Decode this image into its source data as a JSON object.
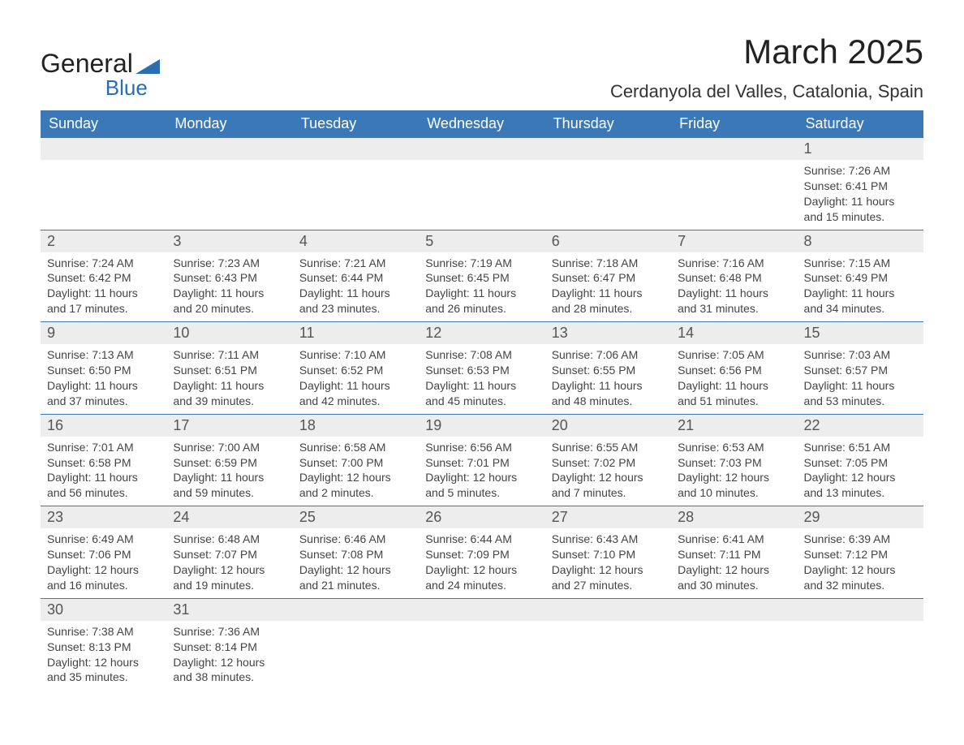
{
  "logo": {
    "general": "General",
    "blue": "Blue"
  },
  "title": "March 2025",
  "location": "Cerdanyola del Valles, Catalonia, Spain",
  "colors": {
    "header_bg": "#3b78b8",
    "header_text": "#ffffff",
    "daynum_bg": "#ededed",
    "border": "#3b78b8",
    "body_text": "#444444",
    "title_text": "#222222",
    "logo_accent": "#2a6db3"
  },
  "weekdays": [
    "Sunday",
    "Monday",
    "Tuesday",
    "Wednesday",
    "Thursday",
    "Friday",
    "Saturday"
  ],
  "weeks": [
    [
      null,
      null,
      null,
      null,
      null,
      null,
      {
        "n": "1",
        "sunrise": "Sunrise: 7:26 AM",
        "sunset": "Sunset: 6:41 PM",
        "dl1": "Daylight: 11 hours",
        "dl2": "and 15 minutes."
      }
    ],
    [
      {
        "n": "2",
        "sunrise": "Sunrise: 7:24 AM",
        "sunset": "Sunset: 6:42 PM",
        "dl1": "Daylight: 11 hours",
        "dl2": "and 17 minutes."
      },
      {
        "n": "3",
        "sunrise": "Sunrise: 7:23 AM",
        "sunset": "Sunset: 6:43 PM",
        "dl1": "Daylight: 11 hours",
        "dl2": "and 20 minutes."
      },
      {
        "n": "4",
        "sunrise": "Sunrise: 7:21 AM",
        "sunset": "Sunset: 6:44 PM",
        "dl1": "Daylight: 11 hours",
        "dl2": "and 23 minutes."
      },
      {
        "n": "5",
        "sunrise": "Sunrise: 7:19 AM",
        "sunset": "Sunset: 6:45 PM",
        "dl1": "Daylight: 11 hours",
        "dl2": "and 26 minutes."
      },
      {
        "n": "6",
        "sunrise": "Sunrise: 7:18 AM",
        "sunset": "Sunset: 6:47 PM",
        "dl1": "Daylight: 11 hours",
        "dl2": "and 28 minutes."
      },
      {
        "n": "7",
        "sunrise": "Sunrise: 7:16 AM",
        "sunset": "Sunset: 6:48 PM",
        "dl1": "Daylight: 11 hours",
        "dl2": "and 31 minutes."
      },
      {
        "n": "8",
        "sunrise": "Sunrise: 7:15 AM",
        "sunset": "Sunset: 6:49 PM",
        "dl1": "Daylight: 11 hours",
        "dl2": "and 34 minutes."
      }
    ],
    [
      {
        "n": "9",
        "sunrise": "Sunrise: 7:13 AM",
        "sunset": "Sunset: 6:50 PM",
        "dl1": "Daylight: 11 hours",
        "dl2": "and 37 minutes."
      },
      {
        "n": "10",
        "sunrise": "Sunrise: 7:11 AM",
        "sunset": "Sunset: 6:51 PM",
        "dl1": "Daylight: 11 hours",
        "dl2": "and 39 minutes."
      },
      {
        "n": "11",
        "sunrise": "Sunrise: 7:10 AM",
        "sunset": "Sunset: 6:52 PM",
        "dl1": "Daylight: 11 hours",
        "dl2": "and 42 minutes."
      },
      {
        "n": "12",
        "sunrise": "Sunrise: 7:08 AM",
        "sunset": "Sunset: 6:53 PM",
        "dl1": "Daylight: 11 hours",
        "dl2": "and 45 minutes."
      },
      {
        "n": "13",
        "sunrise": "Sunrise: 7:06 AM",
        "sunset": "Sunset: 6:55 PM",
        "dl1": "Daylight: 11 hours",
        "dl2": "and 48 minutes."
      },
      {
        "n": "14",
        "sunrise": "Sunrise: 7:05 AM",
        "sunset": "Sunset: 6:56 PM",
        "dl1": "Daylight: 11 hours",
        "dl2": "and 51 minutes."
      },
      {
        "n": "15",
        "sunrise": "Sunrise: 7:03 AM",
        "sunset": "Sunset: 6:57 PM",
        "dl1": "Daylight: 11 hours",
        "dl2": "and 53 minutes."
      }
    ],
    [
      {
        "n": "16",
        "sunrise": "Sunrise: 7:01 AM",
        "sunset": "Sunset: 6:58 PM",
        "dl1": "Daylight: 11 hours",
        "dl2": "and 56 minutes."
      },
      {
        "n": "17",
        "sunrise": "Sunrise: 7:00 AM",
        "sunset": "Sunset: 6:59 PM",
        "dl1": "Daylight: 11 hours",
        "dl2": "and 59 minutes."
      },
      {
        "n": "18",
        "sunrise": "Sunrise: 6:58 AM",
        "sunset": "Sunset: 7:00 PM",
        "dl1": "Daylight: 12 hours",
        "dl2": "and 2 minutes."
      },
      {
        "n": "19",
        "sunrise": "Sunrise: 6:56 AM",
        "sunset": "Sunset: 7:01 PM",
        "dl1": "Daylight: 12 hours",
        "dl2": "and 5 minutes."
      },
      {
        "n": "20",
        "sunrise": "Sunrise: 6:55 AM",
        "sunset": "Sunset: 7:02 PM",
        "dl1": "Daylight: 12 hours",
        "dl2": "and 7 minutes."
      },
      {
        "n": "21",
        "sunrise": "Sunrise: 6:53 AM",
        "sunset": "Sunset: 7:03 PM",
        "dl1": "Daylight: 12 hours",
        "dl2": "and 10 minutes."
      },
      {
        "n": "22",
        "sunrise": "Sunrise: 6:51 AM",
        "sunset": "Sunset: 7:05 PM",
        "dl1": "Daylight: 12 hours",
        "dl2": "and 13 minutes."
      }
    ],
    [
      {
        "n": "23",
        "sunrise": "Sunrise: 6:49 AM",
        "sunset": "Sunset: 7:06 PM",
        "dl1": "Daylight: 12 hours",
        "dl2": "and 16 minutes."
      },
      {
        "n": "24",
        "sunrise": "Sunrise: 6:48 AM",
        "sunset": "Sunset: 7:07 PM",
        "dl1": "Daylight: 12 hours",
        "dl2": "and 19 minutes."
      },
      {
        "n": "25",
        "sunrise": "Sunrise: 6:46 AM",
        "sunset": "Sunset: 7:08 PM",
        "dl1": "Daylight: 12 hours",
        "dl2": "and 21 minutes."
      },
      {
        "n": "26",
        "sunrise": "Sunrise: 6:44 AM",
        "sunset": "Sunset: 7:09 PM",
        "dl1": "Daylight: 12 hours",
        "dl2": "and 24 minutes."
      },
      {
        "n": "27",
        "sunrise": "Sunrise: 6:43 AM",
        "sunset": "Sunset: 7:10 PM",
        "dl1": "Daylight: 12 hours",
        "dl2": "and 27 minutes."
      },
      {
        "n": "28",
        "sunrise": "Sunrise: 6:41 AM",
        "sunset": "Sunset: 7:11 PM",
        "dl1": "Daylight: 12 hours",
        "dl2": "and 30 minutes."
      },
      {
        "n": "29",
        "sunrise": "Sunrise: 6:39 AM",
        "sunset": "Sunset: 7:12 PM",
        "dl1": "Daylight: 12 hours",
        "dl2": "and 32 minutes."
      }
    ],
    [
      {
        "n": "30",
        "sunrise": "Sunrise: 7:38 AM",
        "sunset": "Sunset: 8:13 PM",
        "dl1": "Daylight: 12 hours",
        "dl2": "and 35 minutes."
      },
      {
        "n": "31",
        "sunrise": "Sunrise: 7:36 AM",
        "sunset": "Sunset: 8:14 PM",
        "dl1": "Daylight: 12 hours",
        "dl2": "and 38 minutes."
      },
      null,
      null,
      null,
      null,
      null
    ]
  ]
}
